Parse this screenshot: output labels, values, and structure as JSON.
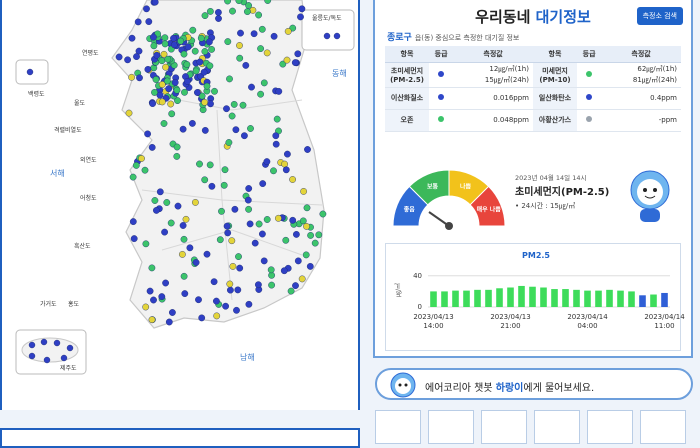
{
  "map": {
    "labels": [
      "울릉도/독도",
      "연평도",
      "백령도",
      "울도",
      "격렬비열도",
      "외연도",
      "어청도",
      "흑산도",
      "가거도",
      "홍도",
      "제주도"
    ],
    "seas": [
      "서해",
      "동해",
      "남해"
    ]
  },
  "panel": {
    "title_main": "우리동네",
    "title_accent": "대기정보",
    "search_button": "측정소 검색",
    "region": "종로구",
    "region_note": "읍(동) 중심으로 측정한 대기질 정보",
    "table": {
      "headers": [
        "항목",
        "등급",
        "측정값",
        "항목",
        "등급",
        "측정값"
      ],
      "rows": [
        [
          {
            "item": "초미세먼지 (PM-2.5)",
            "grade_color": "#2f47c9",
            "values": [
              "12㎍/㎥(1h)",
              "15㎍/㎥(24h)"
            ]
          },
          {
            "item": "미세먼지 (PM-10)",
            "grade_color": "#3cc46b",
            "values": [
              "62㎍/㎥(1h)",
              "81㎍/㎥(24h)"
            ]
          }
        ],
        [
          {
            "item": "이산화질소",
            "grade_color": "#2f47c9",
            "values": [
              "0.016ppm"
            ]
          },
          {
            "item": "일산화탄소",
            "grade_color": "#2f47c9",
            "values": [
              "0.4ppm"
            ]
          }
        ],
        [
          {
            "item": "오존",
            "grade_color": "#3cc46b",
            "values": [
              "0.048ppm"
            ]
          },
          {
            "item": "아황산가스",
            "grade_color": "#9aa3ad",
            "values": [
              "-ppm"
            ]
          }
        ]
      ]
    },
    "gauge": {
      "levels": [
        "좋음",
        "보통",
        "나쁨",
        "매우 나쁨"
      ],
      "colors": [
        "#2f6bd6",
        "#3cb85a",
        "#f2c21b",
        "#e8453c"
      ],
      "time": "2023년 04월 14일 14시",
      "pollutant": "초미세먼지(PM-2.5)",
      "avg24": "• 24시간 : 15㎍/㎥"
    }
  },
  "chart_data": {
    "type": "bar",
    "title": "PM2.5",
    "y_label": "㎍/㎥",
    "categories": [
      "2023/04/13 14:00",
      null,
      null,
      null,
      null,
      null,
      null,
      "2023/04/13 21:00",
      null,
      null,
      null,
      null,
      null,
      null,
      "2023/04/14 04:00",
      null,
      null,
      null,
      null,
      null,
      null,
      "2023/04/14 11:00"
    ],
    "values": [
      20,
      20,
      21,
      21,
      22,
      22,
      24,
      25,
      27,
      26,
      25,
      23,
      23,
      22,
      21,
      21,
      22,
      21,
      20,
      15,
      16,
      18
    ],
    "colors": [
      "#3ddc5a",
      "#3ddc5a",
      "#3ddc5a",
      "#3ddc5a",
      "#3ddc5a",
      "#3ddc5a",
      "#3ddc5a",
      "#3ddc5a",
      "#3ddc5a",
      "#3ddc5a",
      "#3ddc5a",
      "#3ddc5a",
      "#3ddc5a",
      "#3ddc5a",
      "#3ddc5a",
      "#3ddc5a",
      "#3ddc5a",
      "#3ddc5a",
      "#3ddc5a",
      "#2f5fd6",
      "#3ddc5a",
      "#2f5fd6"
    ],
    "ylim": [
      0,
      50
    ],
    "yticks": [
      0,
      40
    ],
    "grid": true
  },
  "chatbot": {
    "prefix": "에어코리아 챗봇 ",
    "highlight": "하랑이",
    "suffix": "에게 물어보세요."
  }
}
